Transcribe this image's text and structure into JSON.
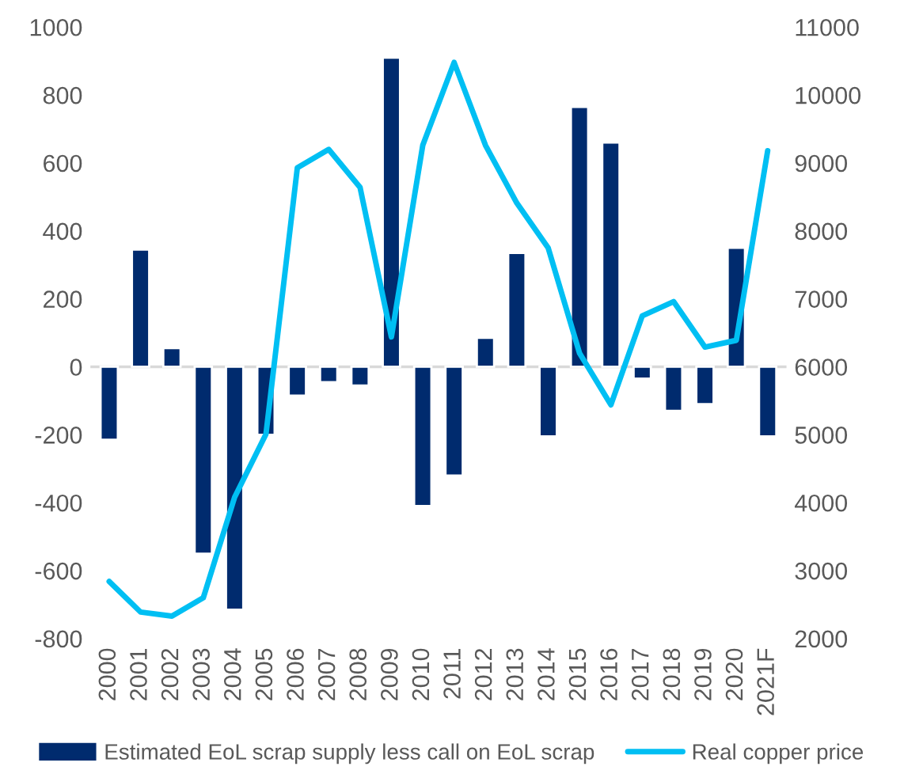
{
  "chart_data": {
    "type": "bar",
    "categories": [
      "2000",
      "2001",
      "2002",
      "2003",
      "2004",
      "2005",
      "2006",
      "2007",
      "2008",
      "2009",
      "2010",
      "2011",
      "2012",
      "2013",
      "2014",
      "2015",
      "2016",
      "2017",
      "2018",
      "2019",
      "2020",
      "2021F"
    ],
    "series": [
      {
        "name": "Estimated EoL scrap supply less call on EoL scrap",
        "color": "#002b6e",
        "values": [
          -215,
          345,
          55,
          -550,
          -715,
          -200,
          -85,
          -45,
          -55,
          910,
          -410,
          -320,
          85,
          335,
          -205,
          765,
          660,
          -35,
          -130,
          -110,
          350,
          -205
        ]
      },
      {
        "name": "Real copper price",
        "type": "line",
        "axis": "y2",
        "color": "#00bff3",
        "values": [
          2840,
          2390,
          2330,
          2600,
          4080,
          5010,
          8930,
          9200,
          8640,
          6440,
          9260,
          10480,
          9260,
          8410,
          7750,
          6200,
          5440,
          6750,
          6960,
          6290,
          6390,
          9180
        ]
      }
    ],
    "ylim": [
      -800,
      1000
    ],
    "yticks": [
      -800,
      -600,
      -400,
      -200,
      0,
      200,
      400,
      600,
      800,
      1000
    ],
    "y2lim": [
      2000,
      11000
    ],
    "y2ticks": [
      2000,
      3000,
      4000,
      5000,
      6000,
      7000,
      8000,
      9000,
      10000,
      11000
    ],
    "ref_lines": [
      {
        "axis": "y",
        "value": 0,
        "color": "#d9d9d9"
      }
    ],
    "legend": "bottom"
  }
}
